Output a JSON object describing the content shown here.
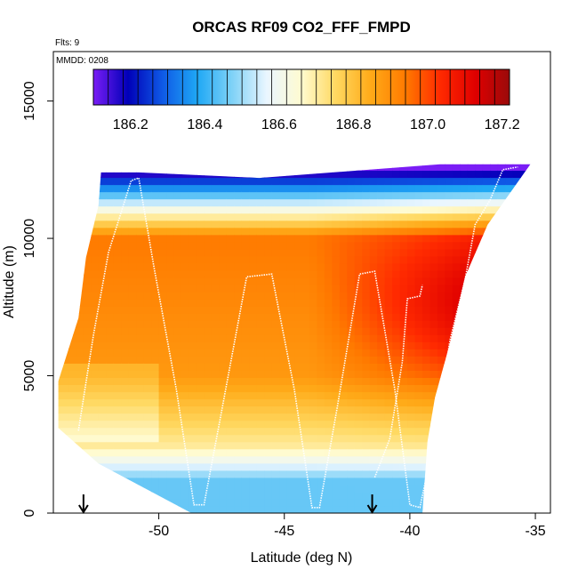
{
  "chart_data": {
    "type": "heatmap",
    "title": "ORCAS RF09 CO2_FFF_FMPD",
    "flights_label": "Flts: 9",
    "date_label": "MMDD: 0208",
    "xlabel": "Latitude (deg N)",
    "ylabel": "Altitude (m)",
    "xlim": [
      -54.2,
      -34.4
    ],
    "ylim": [
      0,
      16800
    ],
    "x_ticks": [
      -50,
      -45,
      -40,
      -35
    ],
    "x_tick_labels": [
      "-50",
      "-45",
      "-40",
      "-35"
    ],
    "y_ticks": [
      0,
      5000,
      10000,
      15000
    ],
    "y_tick_labels": [
      "0",
      "5000",
      "10000",
      "15000"
    ],
    "colorbar": {
      "min": 186.1,
      "max": 187.22,
      "ticks": [
        186.2,
        186.4,
        186.6,
        186.8,
        187.0,
        187.2
      ],
      "tick_labels": [
        "186.2",
        "186.4",
        "186.6",
        "186.8",
        "187.0",
        "187.2"
      ],
      "colors": [
        "#7a1df5",
        "#0000b8",
        "#0f5ae6",
        "#1fa8f5",
        "#7fd2f7",
        "#eaf6ff",
        "#fffbd0",
        "#ffd860",
        "#ffaa18",
        "#ff7a00",
        "#ff2a00",
        "#e00000",
        "#9a0a0a"
      ]
    },
    "domain": {
      "left_edge": [
        [
          -54.0,
          3100
        ],
        [
          -54.0,
          4800
        ],
        [
          -53.2,
          7100
        ],
        [
          -52.9,
          9300
        ],
        [
          -52.4,
          11200
        ],
        [
          -52.3,
          12400
        ]
      ],
      "top_edge": [
        [
          -52.3,
          12400
        ],
        [
          -50.8,
          12400
        ],
        [
          -46.0,
          12200
        ],
        [
          -38.8,
          12700
        ],
        [
          -35.2,
          12700
        ]
      ],
      "right_edge": [
        [
          -35.2,
          12700
        ],
        [
          -36.9,
          10500
        ],
        [
          -37.8,
          8600
        ],
        [
          -38.4,
          6200
        ],
        [
          -39.0,
          4200
        ],
        [
          -39.3,
          2600
        ],
        [
          -39.5,
          0
        ]
      ],
      "bottom_edge": [
        [
          -39.5,
          0
        ],
        [
          -48.7,
          0
        ],
        [
          -52.4,
          1800
        ],
        [
          -54.0,
          3100
        ]
      ]
    },
    "flight_track": [
      [
        -53.2,
        3000
      ],
      [
        -52.6,
        6500
      ],
      [
        -52.0,
        9500
      ],
      [
        -51.1,
        12100
      ],
      [
        -50.8,
        12200
      ],
      [
        -50.2,
        9000
      ],
      [
        -49.3,
        4500
      ],
      [
        -48.6,
        300
      ],
      [
        -48.2,
        300
      ],
      [
        -47.6,
        3200
      ],
      [
        -46.5,
        8600
      ],
      [
        -45.5,
        8700
      ],
      [
        -44.6,
        4500
      ],
      [
        -43.9,
        200
      ],
      [
        -43.6,
        200
      ],
      [
        -42.9,
        3800
      ],
      [
        -42.0,
        8700
      ],
      [
        -41.4,
        8800
      ],
      [
        -40.6,
        4500
      ],
      [
        -40.0,
        300
      ],
      [
        -39.6,
        200
      ],
      [
        -39.0,
        2800
      ],
      [
        -38.4,
        6300
      ],
      [
        -37.8,
        8500
      ],
      [
        -37.4,
        10500
      ],
      [
        -36.8,
        11400
      ],
      [
        -36.3,
        12500
      ],
      [
        -35.7,
        12600
      ]
    ],
    "track_segment_2": [
      [
        -41.4,
        1300
      ],
      [
        -40.8,
        2700
      ],
      [
        -40.3,
        5500
      ],
      [
        -40.1,
        7800
      ],
      [
        -39.6,
        7900
      ],
      [
        -39.5,
        8300
      ]
    ],
    "arrows_lat": [
      -53.0,
      -41.5
    ]
  }
}
